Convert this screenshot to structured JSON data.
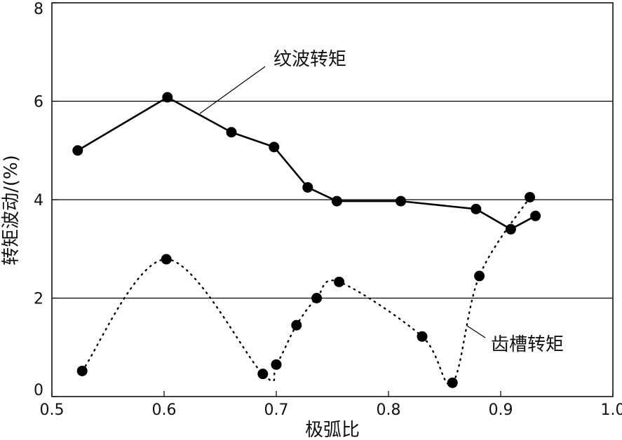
{
  "chart_data": {
    "type": "line",
    "xlabel": "极弧比",
    "ylabel": "转矩波动/(%)",
    "xlim": [
      0.5,
      1.0
    ],
    "ylim": [
      0,
      8
    ],
    "xticks": [
      "0.5",
      "0.6",
      "0.7",
      "0.8",
      "0.9",
      "1.0"
    ],
    "yticks": [
      "0",
      "2",
      "4",
      "6",
      "8"
    ],
    "grid": "horizontal",
    "colors": {
      "line": "#000000",
      "marker": "#000000",
      "grid": "#000000"
    },
    "series": [
      {
        "name": "纹波转矩",
        "style": "solid",
        "x": [
          0.523,
          0.603,
          0.66,
          0.698,
          0.728,
          0.754,
          0.811,
          0.878,
          0.909,
          0.931
        ],
        "y": [
          5.0,
          6.08,
          5.37,
          5.07,
          4.25,
          3.97,
          3.97,
          3.81,
          3.4,
          3.67
        ]
      },
      {
        "name": "齿槽转矩",
        "style": "dotted",
        "x": [
          0.527,
          0.602,
          0.688,
          0.7,
          0.718,
          0.736,
          0.756,
          0.83,
          0.857,
          0.881,
          0.926
        ],
        "y": [
          0.52,
          2.79,
          0.46,
          0.65,
          1.45,
          2.0,
          2.33,
          1.22,
          0.28,
          2.45,
          4.05
        ]
      }
    ]
  }
}
